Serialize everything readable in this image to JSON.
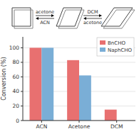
{
  "chart_data": {
    "type": "bar",
    "annotations": [
      "acetone",
      "ACN",
      "DCM",
      "acetone"
    ],
    "categories": [
      "ACN",
      "Acetone",
      "DCM"
    ],
    "series": [
      {
        "name": "BnCHO",
        "color": "#e87070",
        "values": [
          100,
          83,
          15
        ]
      },
      {
        "name": "NaphCHO",
        "color": "#7aaed6",
        "values": [
          100,
          62,
          0
        ]
      }
    ],
    "ylabel": "Conversion (%)",
    "ylim": [
      0,
      115
    ],
    "yticks": [
      0,
      20,
      40,
      60,
      80,
      100
    ],
    "legend": "upper right"
  }
}
